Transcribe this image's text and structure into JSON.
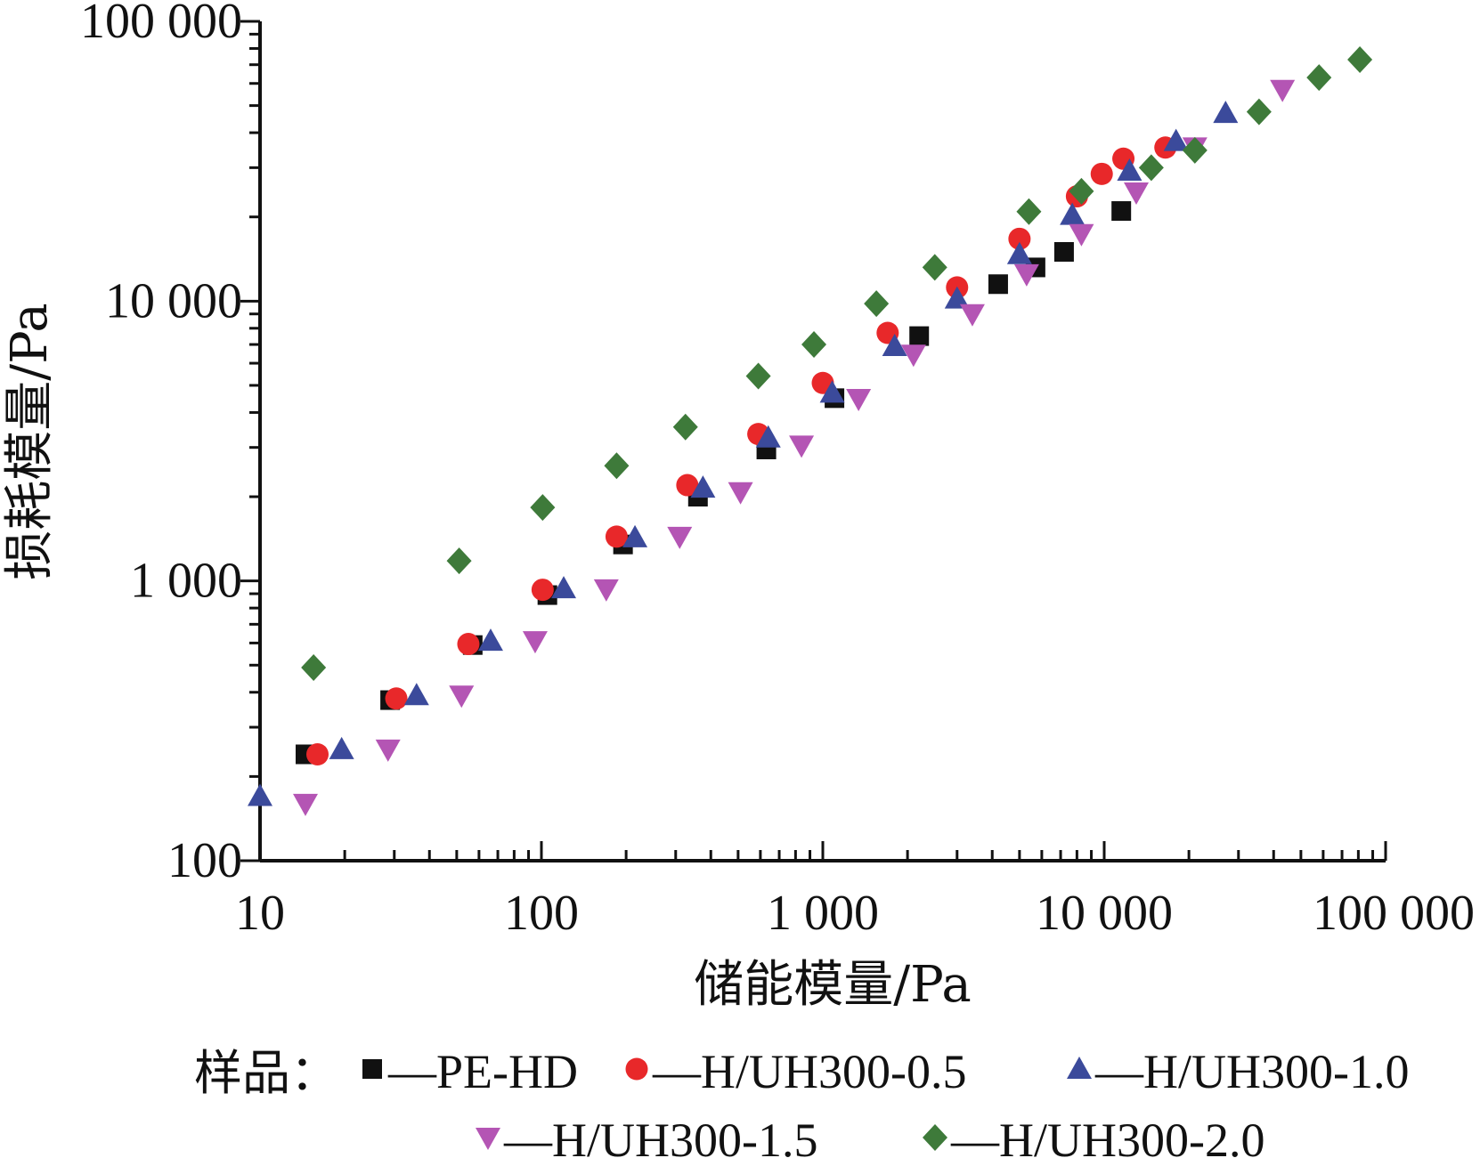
{
  "chart_data": {
    "type": "scatter",
    "xlabel": "储能模量/Pa",
    "ylabel": "损耗模量/Pa",
    "xscale": "log",
    "yscale": "log",
    "xlim": [
      10,
      100000
    ],
    "ylim": [
      100,
      100000
    ],
    "xticks": [
      10,
      100,
      1000,
      10000,
      100000
    ],
    "xtick_labels": [
      "10",
      "100",
      "1 000",
      "10 000",
      "100 000"
    ],
    "yticks": [
      100,
      1000,
      10000,
      100000
    ],
    "ytick_labels": [
      "100",
      "1 000",
      "10 000",
      "100 000"
    ],
    "grid": false,
    "legend": {
      "placement": "bottom",
      "prefix": "样品：",
      "dash": "—"
    },
    "series": [
      {
        "name": "PE-HD",
        "marker": "square",
        "color": "#111111",
        "points": [
          [
            14.5,
            240
          ],
          [
            29,
            375
          ],
          [
            57,
            590
          ],
          [
            105,
            890
          ],
          [
            195,
            1350
          ],
          [
            360,
            2000
          ],
          [
            630,
            2950
          ],
          [
            1100,
            4500
          ],
          [
            2200,
            7500
          ],
          [
            4200,
            11500
          ],
          [
            5700,
            13200
          ],
          [
            7200,
            15000
          ],
          [
            11500,
            21000
          ]
        ]
      },
      {
        "name": "H/UH300-0.5",
        "marker": "circle",
        "color": "#e8282a",
        "points": [
          [
            16,
            240
          ],
          [
            30.5,
            380
          ],
          [
            55,
            595
          ],
          [
            101,
            930
          ],
          [
            185,
            1440
          ],
          [
            330,
            2200
          ],
          [
            590,
            3350
          ],
          [
            1000,
            5100
          ],
          [
            1700,
            7700
          ],
          [
            3000,
            11200
          ],
          [
            5000,
            16700
          ],
          [
            8000,
            23700
          ],
          [
            9800,
            28500
          ],
          [
            11700,
            32300
          ],
          [
            16500,
            35400
          ]
        ]
      },
      {
        "name": "H/UH300-1.0",
        "marker": "triangle-up",
        "color": "#3b4a9b",
        "points": [
          [
            10,
            170
          ],
          [
            19.5,
            250
          ],
          [
            36,
            390
          ],
          [
            66,
            610
          ],
          [
            120,
            940
          ],
          [
            215,
            1430
          ],
          [
            375,
            2150
          ],
          [
            640,
            3250
          ],
          [
            1080,
            4700
          ],
          [
            1800,
            6900
          ],
          [
            3000,
            10200
          ],
          [
            5000,
            14700
          ],
          [
            7700,
            20300
          ],
          [
            12300,
            29200
          ],
          [
            18000,
            37300
          ],
          [
            27000,
            47000
          ]
        ]
      },
      {
        "name": "H/UH300-1.5",
        "marker": "triangle-down",
        "color": "#b455b4",
        "points": [
          [
            14.5,
            160
          ],
          [
            28.5,
            250
          ],
          [
            52,
            390
          ],
          [
            95,
            610
          ],
          [
            170,
            935
          ],
          [
            310,
            1440
          ],
          [
            510,
            2080
          ],
          [
            840,
            3050
          ],
          [
            1340,
            4480
          ],
          [
            2100,
            6450
          ],
          [
            3400,
            9000
          ],
          [
            5300,
            12500
          ],
          [
            8300,
            17400
          ],
          [
            13000,
            24500
          ],
          [
            21000,
            35500
          ],
          [
            43000,
            57000
          ]
        ]
      },
      {
        "name": "H/UH300-2.0",
        "marker": "diamond",
        "color": "#3e7a3a",
        "points": [
          [
            15.5,
            490
          ],
          [
            51,
            1180
          ],
          [
            101,
            1830
          ],
          [
            185,
            2580
          ],
          [
            325,
            3550
          ],
          [
            590,
            5400
          ],
          [
            930,
            7000
          ],
          [
            1550,
            9800
          ],
          [
            2500,
            13200
          ],
          [
            5400,
            20900
          ],
          [
            8300,
            24700
          ],
          [
            14700,
            30000
          ],
          [
            21000,
            34600
          ],
          [
            35500,
            47500
          ],
          [
            58000,
            63000
          ],
          [
            81000,
            73000
          ]
        ]
      }
    ]
  }
}
